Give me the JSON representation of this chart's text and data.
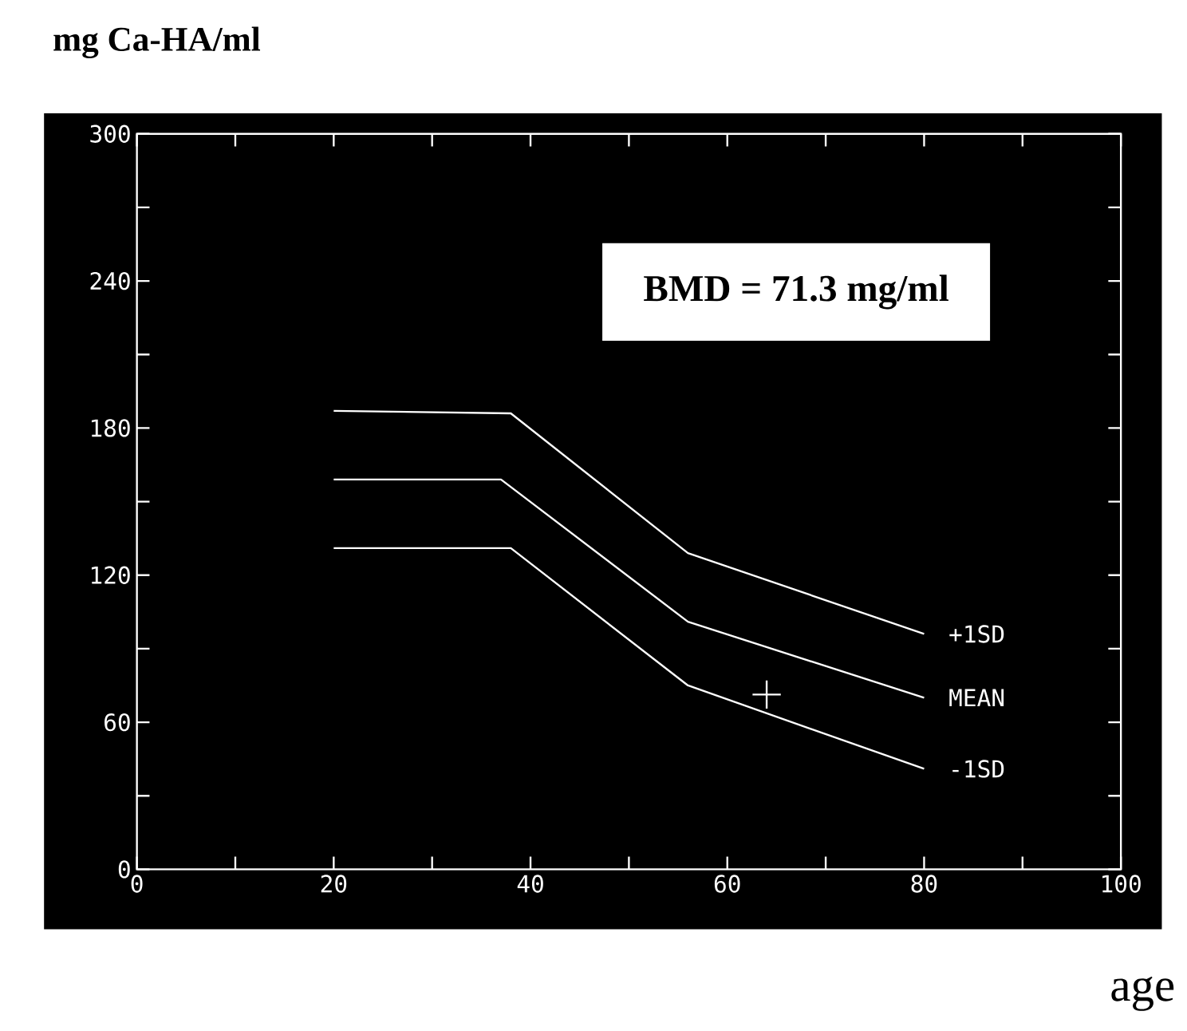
{
  "chart_data": {
    "type": "line",
    "ylabel": "mg Ca-HA/ml",
    "xlabel": "age",
    "annotations": [
      "BMD = 71.3 mg/ml"
    ],
    "xlim": [
      0,
      100
    ],
    "ylim": [
      0,
      300
    ],
    "xticks": [
      0,
      {
        "value": 10,
        "label": null
      },
      20,
      {
        "value": 30,
        "label": null
      },
      40,
      {
        "value": 50,
        "label": null
      },
      60,
      {
        "value": 70,
        "label": null
      },
      80,
      {
        "value": 90,
        "label": null
      },
      100
    ],
    "yticks": [
      0,
      {
        "value": 30,
        "label": null
      },
      60,
      {
        "value": 90,
        "label": null
      },
      120,
      {
        "value": 150,
        "label": null
      },
      180,
      {
        "value": 210,
        "label": null
      },
      240,
      {
        "value": 270,
        "label": null
      },
      300
    ],
    "series": [
      {
        "name": "+1SD",
        "color": "#ffffff",
        "x": [
          20,
          38,
          56,
          80
        ],
        "values": [
          187,
          186,
          129,
          96
        ]
      },
      {
        "name": "MEAN",
        "color": "#ffffff",
        "x": [
          20,
          37,
          56,
          80
        ],
        "values": [
          159,
          159,
          101,
          70
        ]
      },
      {
        "name": "-1SD",
        "color": "#ffffff",
        "x": [
          20,
          38,
          56,
          80
        ],
        "values": [
          131,
          131,
          75,
          41
        ]
      },
      {
        "type": "scatter",
        "color": "#ffffff",
        "x": [
          64
        ],
        "values": [
          71.3
        ],
        "marker": "cross"
      }
    ]
  }
}
